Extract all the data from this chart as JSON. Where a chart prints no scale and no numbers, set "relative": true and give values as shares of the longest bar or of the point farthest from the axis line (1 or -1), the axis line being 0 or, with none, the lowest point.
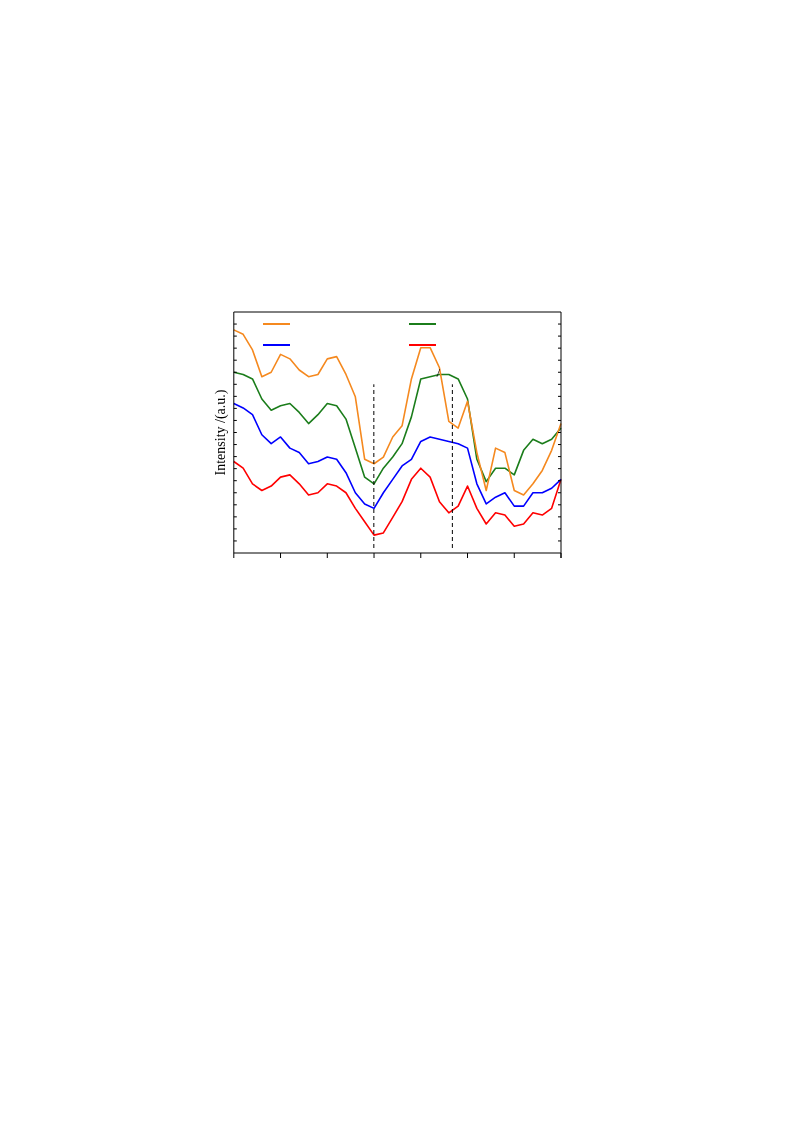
{
  "chart_data": {
    "type": "line",
    "relative": true,
    "ylabel": "Intensity /(a.u.)",
    "grid": false,
    "marker": "none",
    "line_style": "solid",
    "categories": [
      null,
      null,
      null,
      null,
      null,
      null,
      null,
      null,
      null,
      null,
      null,
      null,
      null,
      null,
      null,
      null,
      null,
      null,
      null,
      null,
      null,
      null,
      null,
      null,
      null,
      null,
      null,
      null,
      null,
      null,
      null,
      null,
      null,
      null,
      null,
      null
    ],
    "series": [
      {
        "color": "#f5891f",
        "values": [
          1.0,
          0.98,
          0.91,
          0.79,
          0.81,
          0.89,
          0.87,
          0.82,
          0.79,
          0.8,
          0.87,
          0.88,
          0.8,
          0.7,
          0.42,
          0.4,
          0.43,
          0.52,
          0.57,
          0.78,
          0.92,
          0.92,
          0.83,
          0.59,
          0.56,
          0.68,
          0.45,
          0.28,
          0.47,
          0.45,
          0.28,
          0.26,
          0.31,
          0.37,
          0.46,
          0.58
        ]
      },
      {
        "color": "#1b7d1b",
        "values": [
          0.81,
          0.8,
          0.78,
          0.69,
          0.64,
          0.66,
          0.67,
          0.63,
          0.58,
          0.62,
          0.67,
          0.66,
          0.6,
          0.47,
          0.34,
          0.31,
          0.38,
          0.43,
          0.49,
          0.61,
          0.78,
          0.79,
          0.8,
          0.8,
          0.78,
          0.69,
          0.42,
          0.32,
          0.38,
          0.38,
          0.35,
          0.46,
          0.51,
          0.49,
          0.51,
          0.56
        ]
      },
      {
        "color": "#0000ff",
        "values": [
          0.67,
          0.65,
          0.62,
          0.53,
          0.49,
          0.52,
          0.47,
          0.45,
          0.4,
          0.41,
          0.43,
          0.42,
          0.36,
          0.27,
          0.22,
          0.2,
          0.27,
          0.33,
          0.39,
          0.42,
          0.5,
          0.52,
          0.51,
          0.5,
          0.49,
          0.47,
          0.31,
          0.22,
          0.25,
          0.27,
          0.21,
          0.21,
          0.27,
          0.27,
          0.29,
          0.33
        ]
      },
      {
        "color": "#ff0000",
        "values": [
          0.41,
          0.38,
          0.31,
          0.28,
          0.3,
          0.34,
          0.35,
          0.31,
          0.26,
          0.27,
          0.31,
          0.3,
          0.27,
          0.2,
          0.14,
          0.08,
          0.09,
          0.16,
          0.23,
          0.33,
          0.38,
          0.34,
          0.23,
          0.18,
          0.21,
          0.3,
          0.2,
          0.13,
          0.18,
          0.17,
          0.12,
          0.13,
          0.18,
          0.17,
          0.2,
          0.33
        ]
      }
    ],
    "annotations": [
      "/"
    ]
  }
}
